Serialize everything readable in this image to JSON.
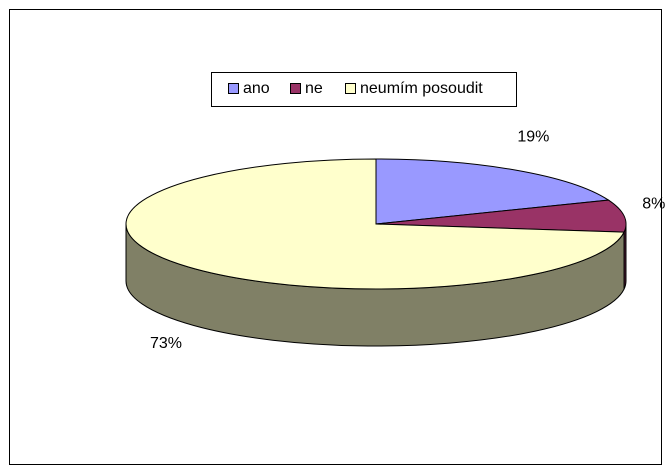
{
  "chart_data": {
    "type": "pie3d",
    "categories": [
      "ano",
      "ne",
      "neumím posoudit"
    ],
    "values": [
      19,
      8,
      73
    ],
    "value_labels": [
      "19%",
      "8%",
      "73%"
    ],
    "colors": [
      "#9999ff",
      "#993366",
      "#ffffcc"
    ],
    "legend": "top"
  }
}
